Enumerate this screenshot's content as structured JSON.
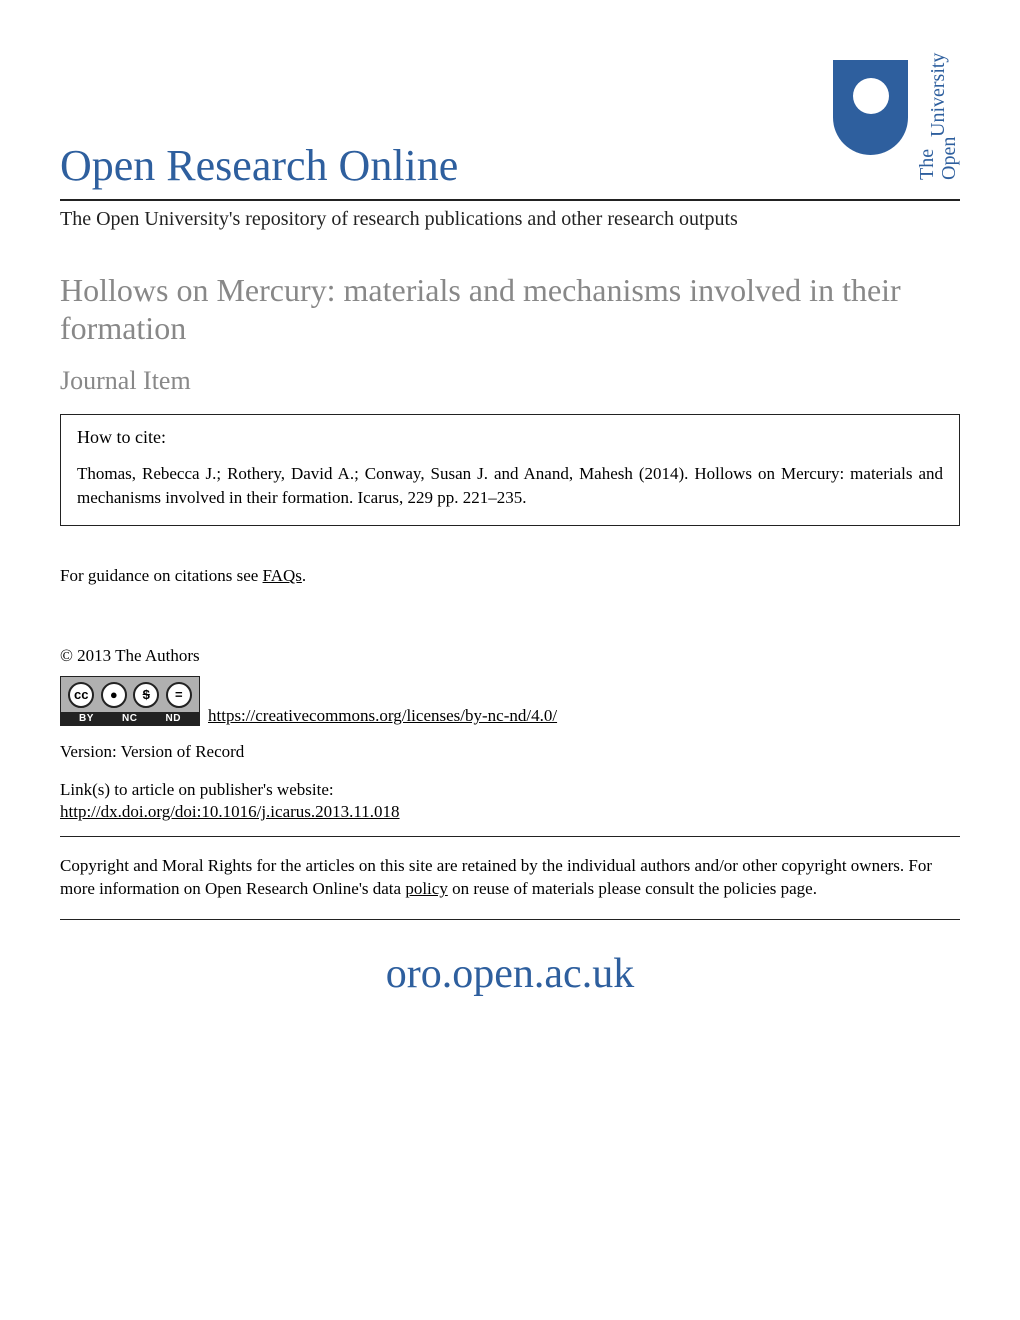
{
  "colors": {
    "brand_blue": "#2e5f9e",
    "gray_text": "#888888",
    "body_text": "#222222",
    "badge_gray": "#b0b0b0"
  },
  "header": {
    "main_title": "Open Research Online",
    "university_line1": "The Open",
    "university_line2": "University",
    "subtitle": "The Open University's repository of research publications and other research outputs"
  },
  "article": {
    "title": "Hollows on Mercury: materials and mechanisms involved in their formation",
    "item_type": "Journal Item"
  },
  "cite": {
    "label": "How to cite:",
    "text": "Thomas, Rebecca J.; Rothery, David A.; Conway, Susan J. and Anand, Mahesh (2014).  Hollows on Mercury: materials and mechanisms involved in their formation. Icarus, 229 pp. 221–235."
  },
  "guidance": {
    "prefix": "For guidance on citations see ",
    "link": "FAQs",
    "suffix": "."
  },
  "copyright": "© 2013 The Authors",
  "cc": {
    "icons": [
      "cc",
      "①",
      "$",
      "="
    ],
    "labels": [
      "BY",
      "NC",
      "ND"
    ],
    "license_url": "https://creativecommons.org/licenses/by-nc-nd/4.0/"
  },
  "version": "Version: Version of Record",
  "links": {
    "label": "Link(s) to article on publisher's website:",
    "doi": "http://dx.doi.org/doi:10.1016/j.icarus.2013.11.018"
  },
  "rights": {
    "prefix": "Copyright and Moral Rights for the articles on this site are retained by the individual authors and/or other copyright owners. For more information on Open Research Online's data ",
    "policy": "policy",
    "suffix": " on reuse of materials please consult the policies page."
  },
  "footer_url": "oro.open.ac.uk"
}
